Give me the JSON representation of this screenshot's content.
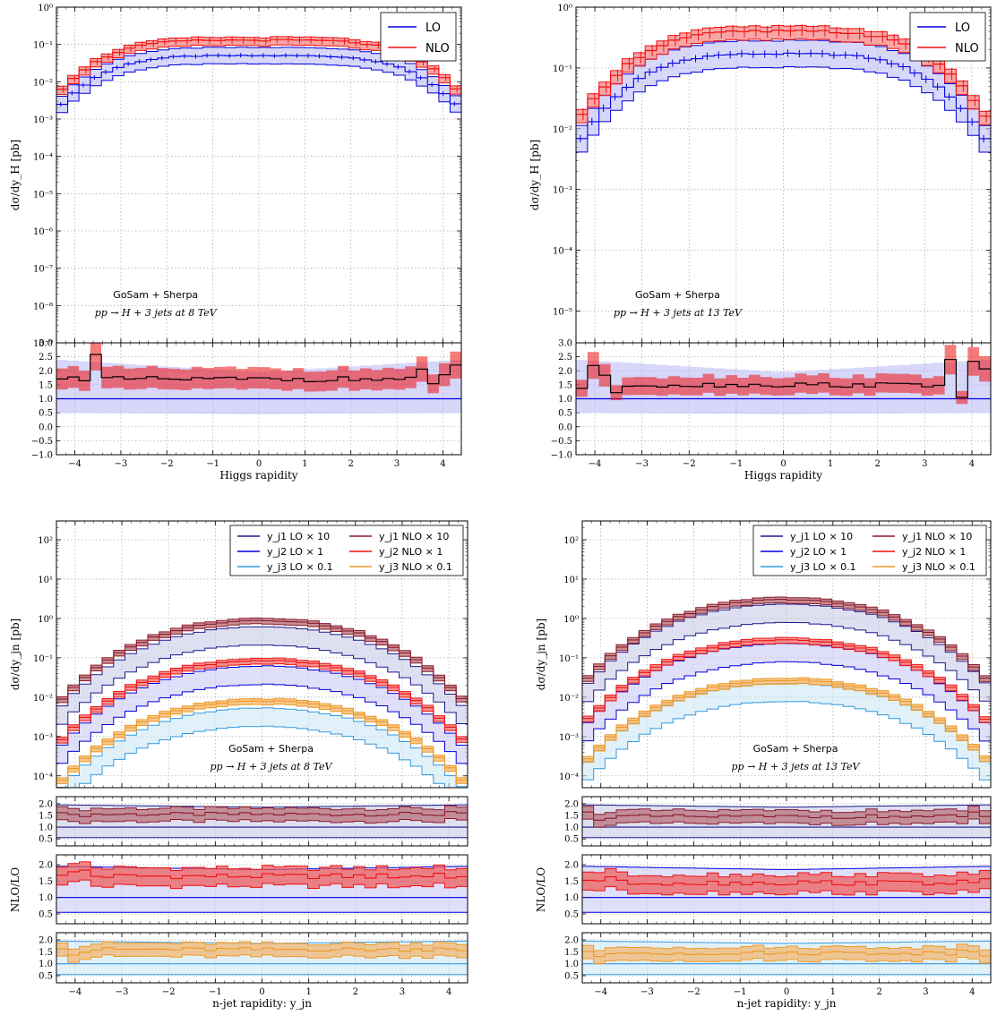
{
  "chart_data": [
    {
      "panel": "top-left",
      "type": "line",
      "title": "",
      "xlabel": "Higgs rapidity",
      "ylabel": "dσ/dy_H [pb]",
      "yscale": "log",
      "xlim": [
        -4.4,
        4.4
      ],
      "ylim": [
        1e-09,
        1
      ],
      "grid": true,
      "legend": {
        "placement": "top-right",
        "entries": [
          "LO",
          "NLO"
        ]
      },
      "annotations": [
        "GoSam + Sherpa",
        "pp → H + 3 jets at 8 TeV"
      ],
      "ratio_ylim": [
        -1.0,
        3.0
      ],
      "ratio_ticks": [
        "−1.0",
        "−0.5",
        "0.0",
        "0.5",
        "1.0",
        "1.5",
        "2.0",
        "2.5",
        "3.0"
      ],
      "x_ticks": [
        "−4",
        "−3",
        "−2",
        "−1",
        "0",
        "1",
        "2",
        "3",
        "4"
      ],
      "y_ticks": [
        "10⁻⁹",
        "10⁻⁸",
        "10⁻⁷",
        "10⁻⁶",
        "10⁻⁵",
        "10⁻⁴",
        "10⁻³",
        "10⁻²",
        "10⁻¹",
        "10⁰"
      ],
      "series": [
        {
          "name": "LO",
          "central_peak": 0.05,
          "band": [
            0.03,
            0.08
          ]
        },
        {
          "name": "NLO",
          "central_peak": 0.13,
          "band": [
            0.09,
            0.16
          ]
        }
      ],
      "ratio_nlo_lo": 1.7
    },
    {
      "panel": "top-right",
      "type": "line",
      "title": "",
      "xlabel": "Higgs rapidity",
      "ylabel": "dσ/dy_H [pb]",
      "yscale": "log",
      "xlim": [
        -4.4,
        4.4
      ],
      "ylim": [
        3e-06,
        1
      ],
      "grid": true,
      "legend": {
        "placement": "top-right",
        "entries": [
          "LO",
          "NLO"
        ]
      },
      "annotations": [
        "GoSam + Sherpa",
        "pp → H + 3 jets at 13 TeV"
      ],
      "ratio_ylim": [
        -1.0,
        3.0
      ],
      "ratio_ticks": [
        "−1.0",
        "−0.5",
        "0.0",
        "0.5",
        "1.0",
        "1.5",
        "2.0",
        "2.5",
        "3.0"
      ],
      "x_ticks": [
        "−4",
        "−3",
        "−2",
        "−1",
        "0",
        "1",
        "2",
        "3",
        "4"
      ],
      "y_ticks": [
        "10⁻⁵",
        "10⁻⁴",
        "10⁻³",
        "10⁻²",
        "10⁻¹",
        "10⁰"
      ],
      "series": [
        {
          "name": "LO",
          "central_peak": 0.17,
          "band": [
            0.1,
            0.28
          ]
        },
        {
          "name": "NLO",
          "central_peak": 0.4,
          "band": [
            0.3,
            0.45
          ]
        }
      ],
      "ratio_nlo_lo": 1.5
    },
    {
      "panel": "bottom-left",
      "type": "line",
      "title": "",
      "xlabel": "n-jet rapidity: y_jn",
      "ylabel": "dσ/dy_jn [pb]",
      "ratio_ylabel": "NLO/LO",
      "yscale": "log",
      "xlim": [
        -4.4,
        4.4
      ],
      "ylim": [
        5e-05,
        300
      ],
      "grid": true,
      "legend": {
        "placement": "top-right",
        "entries": [
          "y_j1 LO × 10",
          "y_j2 LO × 1",
          "y_j3 LO × 0.1",
          "y_j1 NLO × 10",
          "y_j2 NLO × 1",
          "y_j3 NLO × 0.1"
        ]
      },
      "annotations": [
        "GoSam + Sherpa",
        "pp → H + 3 jets at 8 TeV"
      ],
      "ratio_ticks": [
        "0.5",
        "1.0",
        "1.5",
        "2.0"
      ],
      "x_ticks": [
        "−4",
        "−3",
        "−2",
        "−1",
        "0",
        "1",
        "2",
        "3",
        "4"
      ],
      "y_ticks": [
        "10⁻⁴",
        "10⁻³",
        "10⁻²",
        "10⁻¹",
        "10⁰",
        "10¹",
        "10²"
      ],
      "series": [
        {
          "name": "y_j1 LO × 10",
          "central_peak": 0.35,
          "band": [
            0.2,
            0.6
          ]
        },
        {
          "name": "y_j1 NLO × 10",
          "central_peak": 0.9,
          "band": [
            0.75,
            1.05
          ]
        },
        {
          "name": "y_j2 LO × 1",
          "central_peak": 0.035,
          "band": [
            0.02,
            0.06
          ]
        },
        {
          "name": "y_j2 NLO × 1",
          "central_peak": 0.085,
          "band": [
            0.07,
            0.1
          ]
        },
        {
          "name": "y_j3 LO × 0.1",
          "central_peak": 0.003,
          "band": [
            0.0018,
            0.005
          ]
        },
        {
          "name": "y_j3 NLO × 0.1",
          "central_peak": 0.008,
          "band": [
            0.0065,
            0.0095
          ]
        }
      ]
    },
    {
      "panel": "bottom-right",
      "type": "line",
      "title": "",
      "xlabel": "n-jet rapidity: y_jn",
      "ylabel": "dσ/dy_jn [pb]",
      "ratio_ylabel": "NLO/LO",
      "yscale": "log",
      "xlim": [
        -4.4,
        4.4
      ],
      "ylim": [
        5e-05,
        300
      ],
      "grid": true,
      "legend": {
        "placement": "top-right",
        "entries": [
          "y_j1 LO × 10",
          "y_j2 LO × 1",
          "y_j3 LO × 0.1",
          "y_j1 NLO × 10",
          "y_j2 NLO × 1",
          "y_j3 NLO × 0.1"
        ]
      },
      "annotations": [
        "GoSam + Sherpa",
        "pp → H + 3 jets at 13 TeV"
      ],
      "ratio_ticks": [
        "0.5",
        "1.0",
        "1.5",
        "2.0"
      ],
      "x_ticks": [
        "−4",
        "−3",
        "−2",
        "−1",
        "0",
        "1",
        "2",
        "3",
        "4"
      ],
      "y_ticks": [
        "10⁻⁴",
        "10⁻³",
        "10⁻²",
        "10⁻¹",
        "10⁰",
        "10¹",
        "10²"
      ],
      "series": [
        {
          "name": "y_j1 LO × 10",
          "central_peak": 1.3,
          "band": [
            0.8,
            2.2
          ]
        },
        {
          "name": "y_j1 NLO × 10",
          "central_peak": 3.0,
          "band": [
            2.5,
            3.4
          ]
        },
        {
          "name": "y_j2 LO × 1",
          "central_peak": 0.13,
          "band": [
            0.08,
            0.2
          ]
        },
        {
          "name": "y_j2 NLO × 1",
          "central_peak": 0.28,
          "band": [
            0.23,
            0.32
          ]
        },
        {
          "name": "y_j3 LO × 0.1",
          "central_peak": 0.013,
          "band": [
            0.008,
            0.02
          ]
        },
        {
          "name": "y_j3 NLO × 0.1",
          "central_peak": 0.027,
          "band": [
            0.022,
            0.031
          ]
        }
      ]
    }
  ],
  "colors": {
    "lo": "#0000dd",
    "lo_band": "#b7b7f5",
    "nlo": "#ee1111",
    "nlo_band": "#f58080",
    "ratio_line": "#000000",
    "j1_lo": "#1a1a8c",
    "j1_nlo": "#8b1a2a",
    "j3_lo": "#3399dd",
    "j3_nlo": "#ee9922"
  }
}
